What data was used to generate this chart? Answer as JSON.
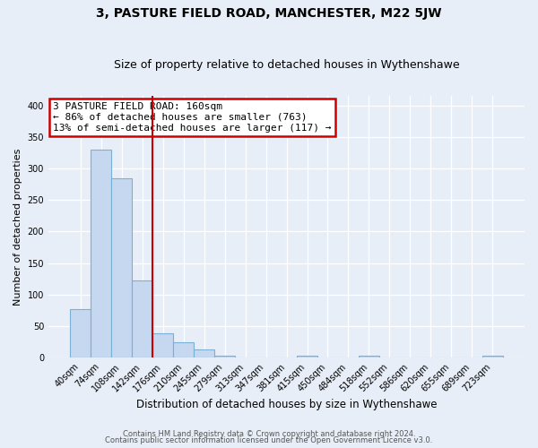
{
  "title": "3, PASTURE FIELD ROAD, MANCHESTER, M22 5JW",
  "subtitle": "Size of property relative to detached houses in Wythenshawe",
  "xlabel": "Distribution of detached houses by size in Wythenshawe",
  "ylabel": "Number of detached properties",
  "bar_labels": [
    "40sqm",
    "74sqm",
    "108sqm",
    "142sqm",
    "176sqm",
    "210sqm",
    "245sqm",
    "279sqm",
    "313sqm",
    "347sqm",
    "381sqm",
    "415sqm",
    "450sqm",
    "484sqm",
    "518sqm",
    "552sqm",
    "586sqm",
    "620sqm",
    "655sqm",
    "689sqm",
    "723sqm"
  ],
  "bar_values": [
    77,
    330,
    284,
    123,
    38,
    24,
    13,
    3,
    0,
    0,
    0,
    3,
    0,
    0,
    3,
    0,
    0,
    0,
    0,
    0,
    3
  ],
  "bar_color": "#c5d8f0",
  "bar_edge_color": "#7bafd4",
  "vline_x": 3.5,
  "vline_color": "#cc0000",
  "annotation_text": "3 PASTURE FIELD ROAD: 160sqm\n← 86% of detached houses are smaller (763)\n13% of semi-detached houses are larger (117) →",
  "annotation_box_color": "#ffffff",
  "annotation_box_edge": "#cc0000",
  "ylim": [
    0,
    415
  ],
  "yticks": [
    0,
    50,
    100,
    150,
    200,
    250,
    300,
    350,
    400
  ],
  "footer_line1": "Contains HM Land Registry data © Crown copyright and database right 2024.",
  "footer_line2": "Contains public sector information licensed under the Open Government Licence v3.0.",
  "bg_color": "#e8eef7",
  "plot_bg_color": "#e8eef7"
}
